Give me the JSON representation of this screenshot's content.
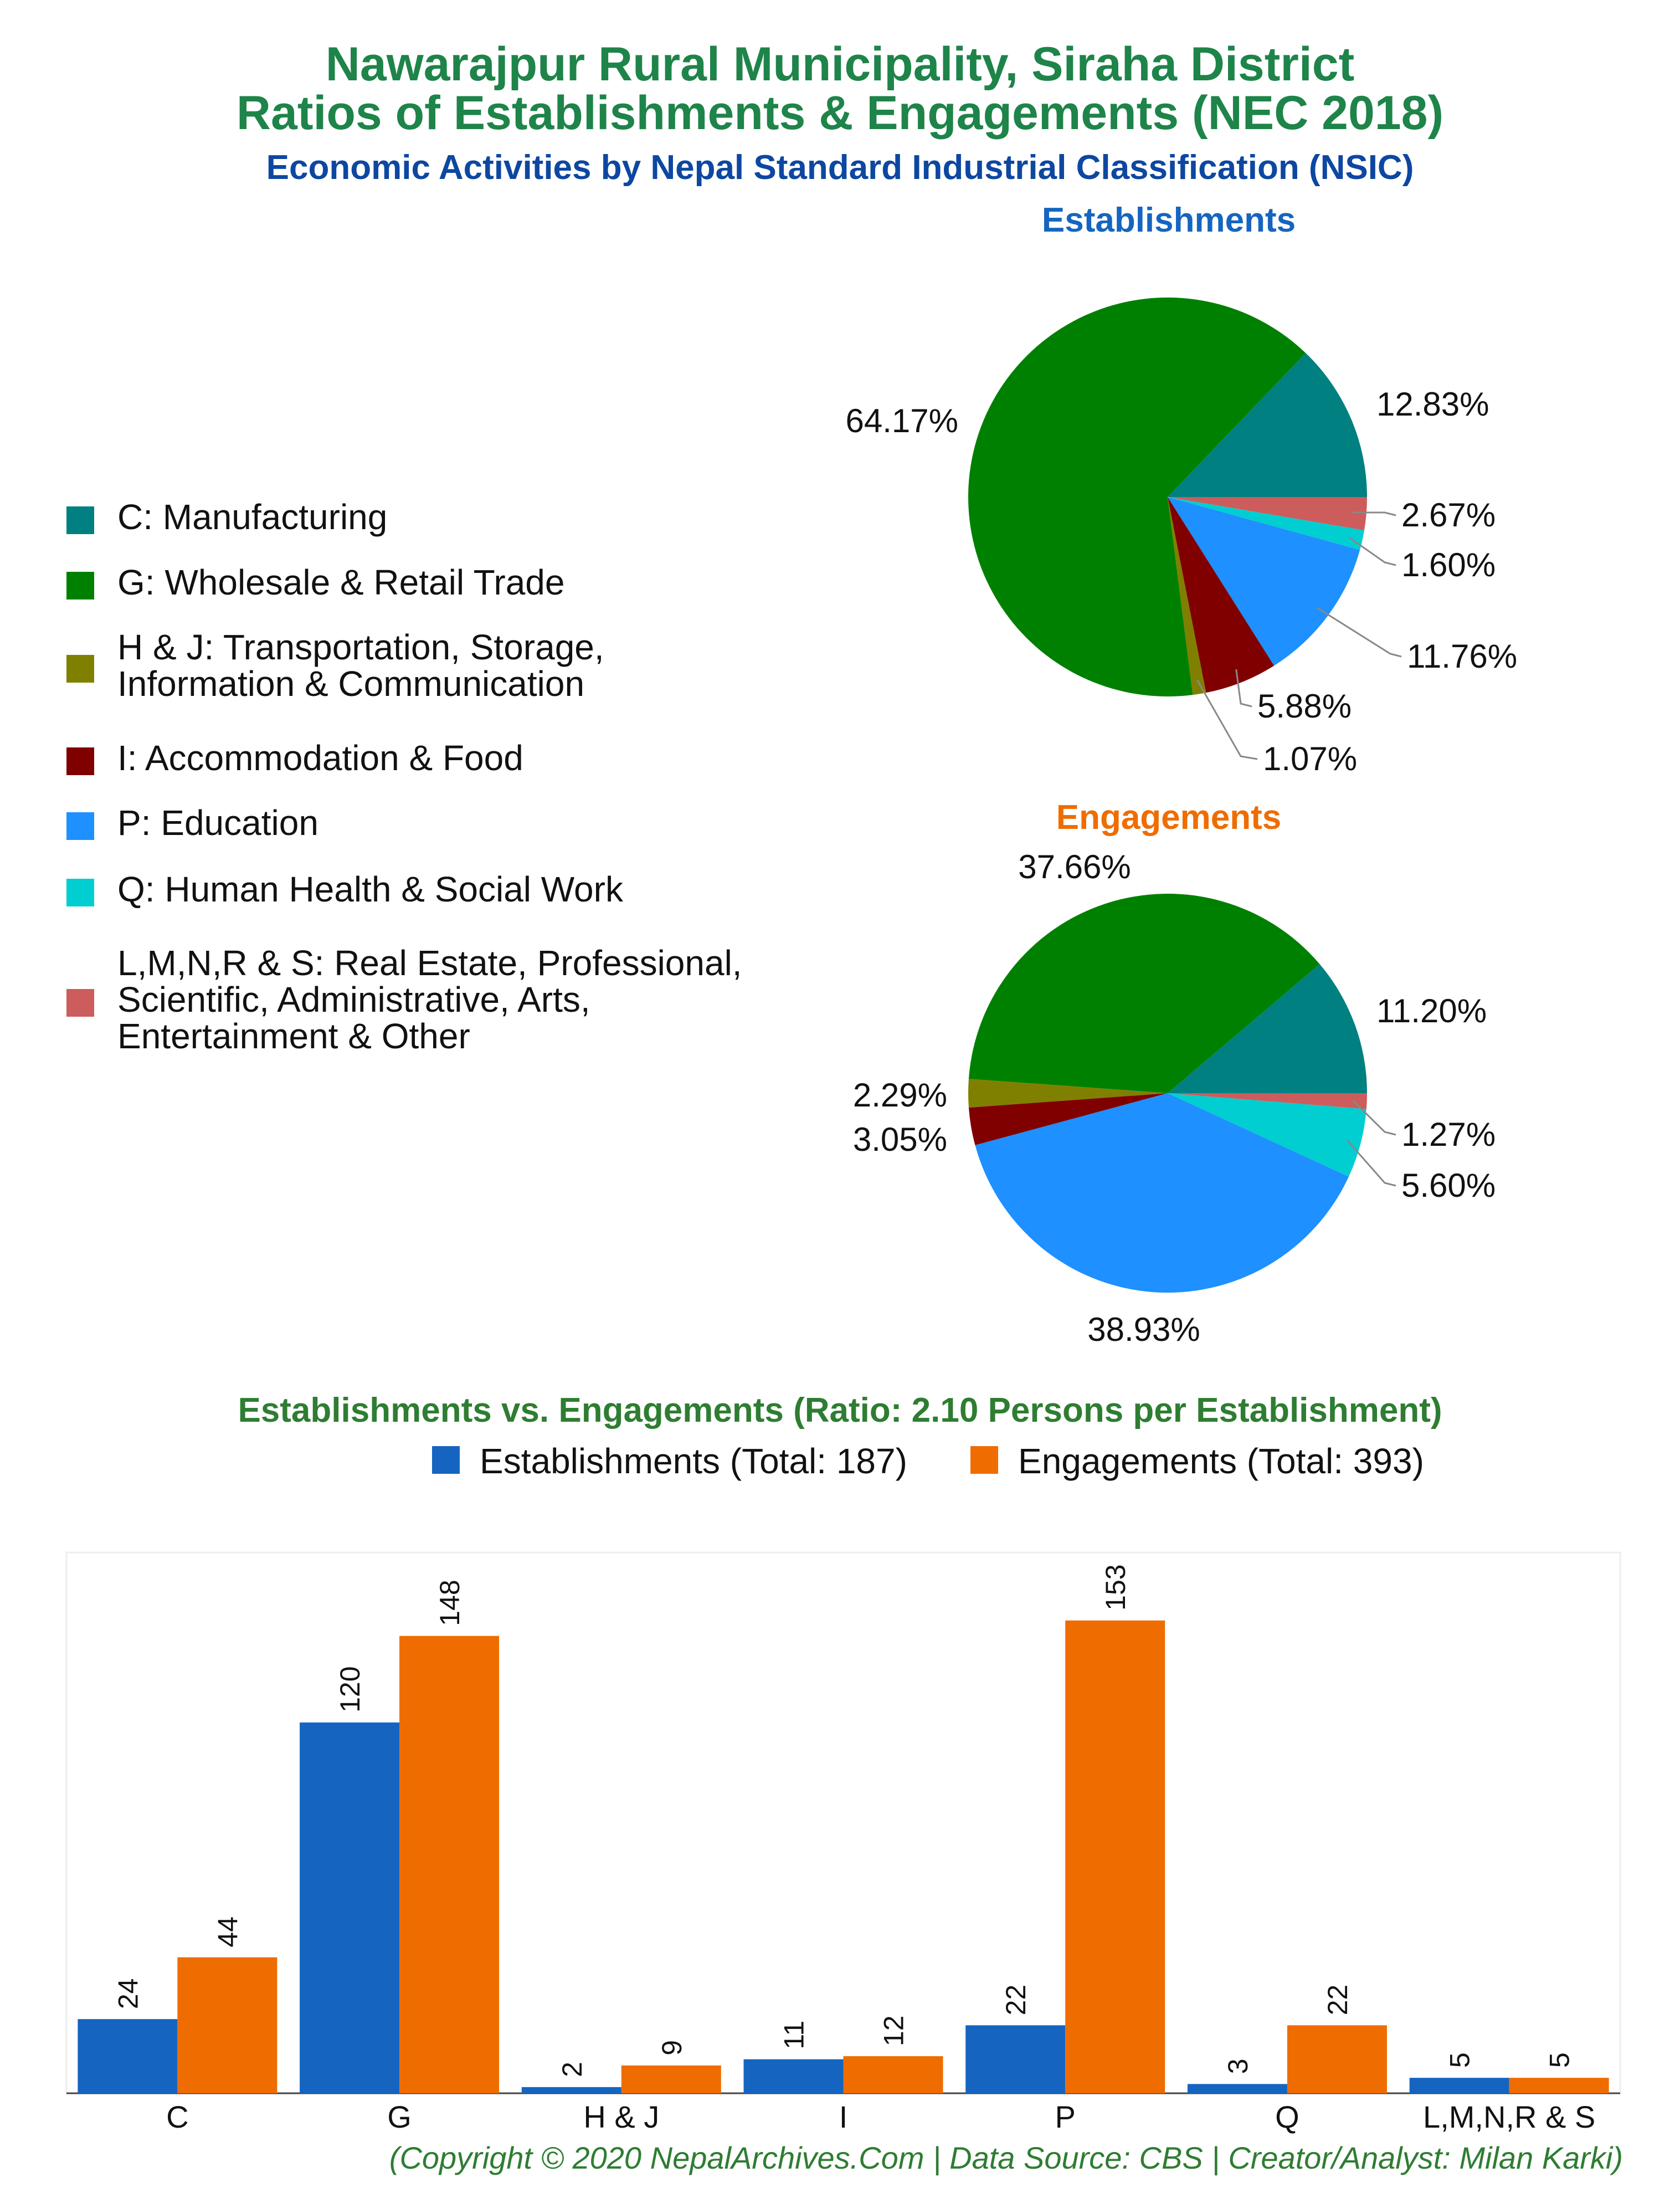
{
  "titles": {
    "line1": "Nawarajpur Rural Municipality, Siraha District",
    "line2": "Ratios of Establishments & Engagements (NEC 2018)",
    "subtitle": "Economic Activities by Nepal Standard Industrial Classification (NSIC)"
  },
  "legend": [
    {
      "label": "C: Manufacturing",
      "color": "#008080"
    },
    {
      "label": "G: Wholesale & Retail Trade",
      "color": "#008000"
    },
    {
      "label": "H & J: Transportation, Storage,\nInformation & Communication",
      "color": "#808000"
    },
    {
      "label": "I: Accommodation & Food",
      "color": "#800000"
    },
    {
      "label": "P: Education",
      "color": "#1e90ff"
    },
    {
      "label": "Q: Human Health & Social Work",
      "color": "#00ced1"
    },
    {
      "label": "L,M,N,R & S: Real Estate, Professional,\nScientific, Administrative, Arts,\nEntertainment & Other",
      "color": "#cd5c5c"
    }
  ],
  "chart_data": [
    {
      "type": "pie",
      "title": "Establishments",
      "categories": [
        "C",
        "G",
        "H & J",
        "I",
        "P",
        "Q",
        "L,M,N,R & S"
      ],
      "values": [
        12.83,
        64.17,
        1.07,
        5.88,
        11.76,
        1.6,
        2.67
      ],
      "labels": [
        "12.83%",
        "64.17%",
        "1.07%",
        "5.88%",
        "11.76%",
        "1.60%",
        "2.67%"
      ],
      "colors": [
        "#008080",
        "#008000",
        "#808000",
        "#800000",
        "#1e90ff",
        "#00ced1",
        "#cd5c5c"
      ]
    },
    {
      "type": "pie",
      "title": "Engagements",
      "categories": [
        "C",
        "G",
        "H & J",
        "I",
        "P",
        "Q",
        "L,M,N,R & S"
      ],
      "values": [
        11.2,
        37.66,
        2.29,
        3.05,
        38.93,
        5.6,
        1.27
      ],
      "labels": [
        "11.20%",
        "37.66%",
        "2.29%",
        "3.05%",
        "38.93%",
        "5.60%",
        "1.27%"
      ],
      "colors": [
        "#008080",
        "#008000",
        "#808000",
        "#800000",
        "#1e90ff",
        "#00ced1",
        "#cd5c5c"
      ]
    },
    {
      "type": "bar",
      "title": "Establishments vs. Engagements (Ratio: 2.10 Persons per Establishment)",
      "categories": [
        "C",
        "G",
        "H & J",
        "I",
        "P",
        "Q",
        "L,M,N,R & S"
      ],
      "series": [
        {
          "name": "Establishments (Total: 187)",
          "values": [
            24,
            120,
            2,
            11,
            22,
            3,
            5
          ],
          "color": "#1565c0"
        },
        {
          "name": "Engagements (Total: 393)",
          "values": [
            44,
            148,
            9,
            12,
            153,
            22,
            5
          ],
          "color": "#ef6c00"
        }
      ],
      "ylim": [
        0,
        175
      ]
    }
  ],
  "footer": "(Copyright © 2020 NepalArchives.Com | Data Source: CBS | Creator/Analyst: Milan Karki)"
}
